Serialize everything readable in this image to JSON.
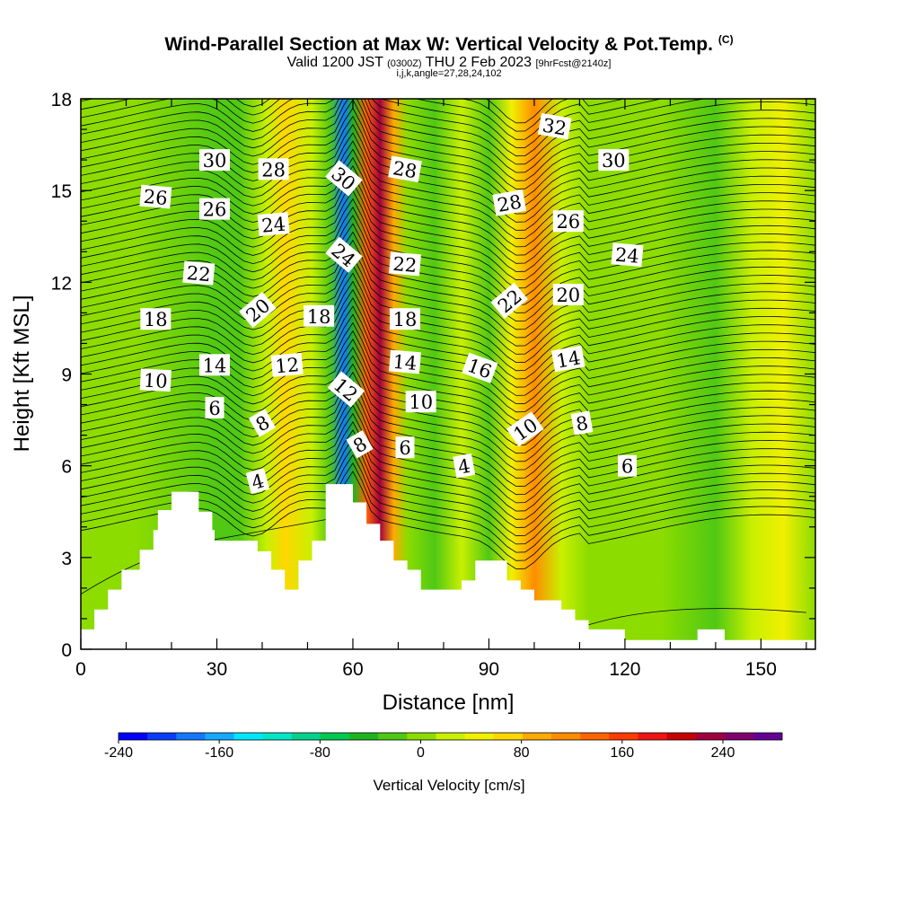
{
  "title": {
    "main": "Wind-Parallel Section at Max W: Vertical Velocity & Pot.Temp.",
    "copyright": "(C)",
    "valid_prefix": "Valid 1200 JST",
    "valid_utc": "(0300Z)",
    "valid_date": "THU 2 Feb 2023",
    "forecast": "[9hrFcst@2140z]",
    "indices": "i,j,k,angle=27,28,24,102"
  },
  "chart_data": {
    "type": "heatmap",
    "xlabel": "Distance [nm]",
    "ylabel": "Height [Kft MSL]",
    "xlim": [
      0,
      162
    ],
    "ylim": [
      0,
      18
    ],
    "xticks": [
      0,
      30,
      60,
      90,
      120,
      150
    ],
    "yticks": [
      0,
      3,
      6,
      9,
      12,
      15,
      18
    ],
    "colorbar": {
      "title": "Vertical Velocity [cm/s]",
      "ticks": [
        -240,
        -160,
        -80,
        0,
        80,
        160,
        240
      ],
      "colors": [
        "#0000ff",
        "#0a3cff",
        "#1478ff",
        "#14aaff",
        "#00e6ff",
        "#00e6c8",
        "#00d28c",
        "#00c850",
        "#1eb41e",
        "#50c814",
        "#8cdc00",
        "#c8f000",
        "#f0f000",
        "#ffd700",
        "#ffaa00",
        "#ff8c00",
        "#ff6400",
        "#ff3c00",
        "#f01414",
        "#c80000",
        "#a0003c",
        "#82006e",
        "#640096"
      ]
    },
    "velocity_bands": [
      {
        "x": 0,
        "w": 0
      },
      {
        "x": 12,
        "w": -15
      },
      {
        "x": 30,
        "w": -20
      },
      {
        "x": 35,
        "w": -40
      },
      {
        "x": 41,
        "w": 15
      },
      {
        "x": 45,
        "w": 60
      },
      {
        "x": 51,
        "w": 10
      },
      {
        "x": 55,
        "w": -40
      },
      {
        "x": 58,
        "w": -190
      },
      {
        "x": 60,
        "w": -60
      },
      {
        "x": 63,
        "w": 140
      },
      {
        "x": 66,
        "w": 230
      },
      {
        "x": 69,
        "w": 90
      },
      {
        "x": 72,
        "w": 0
      },
      {
        "x": 78,
        "w": -20
      },
      {
        "x": 84,
        "w": 10
      },
      {
        "x": 90,
        "w": -40
      },
      {
        "x": 95,
        "w": 40
      },
      {
        "x": 100,
        "w": 110
      },
      {
        "x": 106,
        "w": 30
      },
      {
        "x": 112,
        "w": -10
      },
      {
        "x": 118,
        "w": -15
      },
      {
        "x": 128,
        "w": 0
      },
      {
        "x": 140,
        "w": -20
      },
      {
        "x": 148,
        "w": 20
      },
      {
        "x": 155,
        "w": 35
      },
      {
        "x": 162,
        "w": 5
      }
    ],
    "terrain": [
      {
        "x": 0,
        "h": 0.65
      },
      {
        "x": 3,
        "h": 0.65
      },
      {
        "x": 3,
        "h": 1.3
      },
      {
        "x": 6,
        "h": 1.3
      },
      {
        "x": 6,
        "h": 1.95
      },
      {
        "x": 9,
        "h": 1.95
      },
      {
        "x": 9,
        "h": 2.6
      },
      {
        "x": 12,
        "h": 2.6
      },
      {
        "x": 12,
        "h": 2.6
      },
      {
        "x": 13,
        "h": 2.6
      },
      {
        "x": 13,
        "h": 3.25
      },
      {
        "x": 16,
        "h": 3.25
      },
      {
        "x": 16,
        "h": 3.9
      },
      {
        "x": 17,
        "h": 3.9
      },
      {
        "x": 17,
        "h": 4.55
      },
      {
        "x": 20,
        "h": 4.55
      },
      {
        "x": 20,
        "h": 5.15
      },
      {
        "x": 26,
        "h": 5.15
      },
      {
        "x": 26,
        "h": 4.5
      },
      {
        "x": 29,
        "h": 4.5
      },
      {
        "x": 29,
        "h": 3.9
      },
      {
        "x": 29.5,
        "h": 3.9
      },
      {
        "x": 29.5,
        "h": 3.55
      },
      {
        "x": 39,
        "h": 3.55
      },
      {
        "x": 39,
        "h": 3.2
      },
      {
        "x": 42,
        "h": 3.2
      },
      {
        "x": 42,
        "h": 2.6
      },
      {
        "x": 45,
        "h": 2.6
      },
      {
        "x": 45,
        "h": 1.95
      },
      {
        "x": 48,
        "h": 1.95
      },
      {
        "x": 48,
        "h": 2.9
      },
      {
        "x": 51,
        "h": 2.9
      },
      {
        "x": 51,
        "h": 3.55
      },
      {
        "x": 54,
        "h": 3.55
      },
      {
        "x": 54,
        "h": 5.4
      },
      {
        "x": 60,
        "h": 5.4
      },
      {
        "x": 60,
        "h": 4.8
      },
      {
        "x": 63,
        "h": 4.8
      },
      {
        "x": 63,
        "h": 4.1
      },
      {
        "x": 66,
        "h": 4.1
      },
      {
        "x": 66,
        "h": 3.55
      },
      {
        "x": 69,
        "h": 3.55
      },
      {
        "x": 69,
        "h": 2.9
      },
      {
        "x": 72,
        "h": 2.9
      },
      {
        "x": 72,
        "h": 2.6
      },
      {
        "x": 75,
        "h": 2.6
      },
      {
        "x": 75,
        "h": 1.95
      },
      {
        "x": 84,
        "h": 1.95
      },
      {
        "x": 84,
        "h": 2.25
      },
      {
        "x": 87,
        "h": 2.25
      },
      {
        "x": 87,
        "h": 2.9
      },
      {
        "x": 94,
        "h": 2.9
      },
      {
        "x": 94,
        "h": 2.25
      },
      {
        "x": 97,
        "h": 2.25
      },
      {
        "x": 97,
        "h": 1.95
      },
      {
        "x": 100,
        "h": 1.95
      },
      {
        "x": 100,
        "h": 1.6
      },
      {
        "x": 106,
        "h": 1.6
      },
      {
        "x": 106,
        "h": 1.3
      },
      {
        "x": 109,
        "h": 1.3
      },
      {
        "x": 109,
        "h": 0.95
      },
      {
        "x": 112,
        "h": 0.95
      },
      {
        "x": 112,
        "h": 0.65
      },
      {
        "x": 120,
        "h": 0.65
      },
      {
        "x": 120,
        "h": 0.3
      },
      {
        "x": 136,
        "h": 0.3
      },
      {
        "x": 136,
        "h": 0.65
      },
      {
        "x": 142,
        "h": 0.65
      },
      {
        "x": 142,
        "h": 0.3
      },
      {
        "x": 162,
        "h": 0.3
      }
    ],
    "theta_contour_labels": [
      {
        "label": "30",
        "x": 29.5,
        "y": 16.0,
        "rot": 0
      },
      {
        "label": "28",
        "x": 42.5,
        "y": 15.7,
        "rot": 0
      },
      {
        "label": "26",
        "x": 16.5,
        "y": 14.8,
        "rot": 5
      },
      {
        "label": "26",
        "x": 29.5,
        "y": 14.4,
        "rot": 0
      },
      {
        "label": "24",
        "x": 42.5,
        "y": 13.9,
        "rot": -5
      },
      {
        "label": "22",
        "x": 26.0,
        "y": 12.3,
        "rot": 5
      },
      {
        "label": "20",
        "x": 39.0,
        "y": 11.1,
        "rot": -40
      },
      {
        "label": "18",
        "x": 16.5,
        "y": 10.8,
        "rot": 0
      },
      {
        "label": "18",
        "x": 52.5,
        "y": 10.9,
        "rot": 0
      },
      {
        "label": "14",
        "x": 29.5,
        "y": 9.3,
        "rot": 0
      },
      {
        "label": "12",
        "x": 45.5,
        "y": 9.3,
        "rot": -5
      },
      {
        "label": "10",
        "x": 16.5,
        "y": 8.8,
        "rot": 3
      },
      {
        "label": "6",
        "x": 29.5,
        "y": 7.9,
        "rot": 0
      },
      {
        "label": "8",
        "x": 40.0,
        "y": 7.4,
        "rot": -30
      },
      {
        "label": "4",
        "x": 39.0,
        "y": 5.5,
        "rot": -15
      },
      {
        "label": "30",
        "x": 58.0,
        "y": 15.4,
        "rot": 40
      },
      {
        "label": "28",
        "x": 71.5,
        "y": 15.7,
        "rot": 10
      },
      {
        "label": "24",
        "x": 58.0,
        "y": 12.9,
        "rot": 40
      },
      {
        "label": "22",
        "x": 71.5,
        "y": 12.6,
        "rot": 5
      },
      {
        "label": "18",
        "x": 71.5,
        "y": 10.8,
        "rot": 0
      },
      {
        "label": "14",
        "x": 71.5,
        "y": 9.4,
        "rot": 5
      },
      {
        "label": "12",
        "x": 58.5,
        "y": 8.5,
        "rot": 40
      },
      {
        "label": "10",
        "x": 75.0,
        "y": 8.1,
        "rot": 0
      },
      {
        "label": "8",
        "x": 61.5,
        "y": 6.7,
        "rot": -30
      },
      {
        "label": "6",
        "x": 71.5,
        "y": 6.6,
        "rot": 0
      },
      {
        "label": "4",
        "x": 84.5,
        "y": 6.0,
        "rot": -10
      },
      {
        "label": "32",
        "x": 104.5,
        "y": 17.1,
        "rot": 10
      },
      {
        "label": "30",
        "x": 117.5,
        "y": 16.0,
        "rot": 0
      },
      {
        "label": "28",
        "x": 94.5,
        "y": 14.6,
        "rot": -10
      },
      {
        "label": "26",
        "x": 107.5,
        "y": 14.0,
        "rot": 0
      },
      {
        "label": "24",
        "x": 120.5,
        "y": 12.9,
        "rot": 5
      },
      {
        "label": "22",
        "x": 94.5,
        "y": 11.4,
        "rot": -40
      },
      {
        "label": "20",
        "x": 107.5,
        "y": 11.6,
        "rot": 0
      },
      {
        "label": "16",
        "x": 88.0,
        "y": 9.2,
        "rot": 20
      },
      {
        "label": "14",
        "x": 107.5,
        "y": 9.5,
        "rot": -10
      },
      {
        "label": "10",
        "x": 98.0,
        "y": 7.2,
        "rot": -35
      },
      {
        "label": "8",
        "x": 110.5,
        "y": 7.4,
        "rot": -10
      },
      {
        "label": "6",
        "x": 120.5,
        "y": 6.0,
        "rot": 0
      }
    ]
  }
}
